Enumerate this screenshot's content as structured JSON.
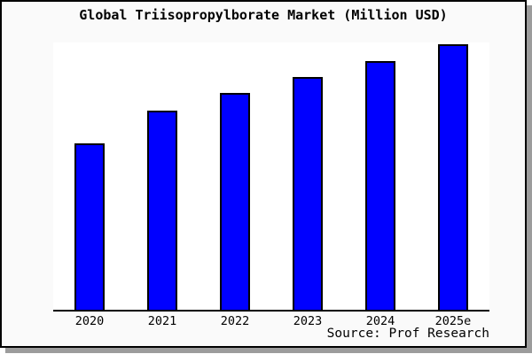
{
  "title": "Global Triisopropylborate Market (Million USD)",
  "source": "Source: Prof Research",
  "colors": {
    "bar_fill": "#0000ff",
    "bar_border": "#000000",
    "figure_background": "#fafafa",
    "plot_background": "#ffffff",
    "axis": "#000000",
    "frame_border": "#000000",
    "frame_shadow": "#9c9c9c",
    "text": "#000000"
  },
  "chart_data": {
    "type": "bar",
    "title": "Global Triisopropylborate Market (Million USD)",
    "categories": [
      "2020",
      "2021",
      "2022",
      "2023",
      "2024",
      "2025e"
    ],
    "values": [
      188,
      225,
      245,
      263,
      281,
      300
    ],
    "values_note": "No y-axis, gridlines or data labels are shown in the chart; values are relative bar heights (arbitrary units, proportional to pixels measured from the baseline).",
    "ylim": [
      0,
      302
    ],
    "xlabel": "",
    "ylabel": "",
    "grid": false,
    "legend": false,
    "y_axis_visible": false,
    "annotation": "Source: Prof Research"
  }
}
